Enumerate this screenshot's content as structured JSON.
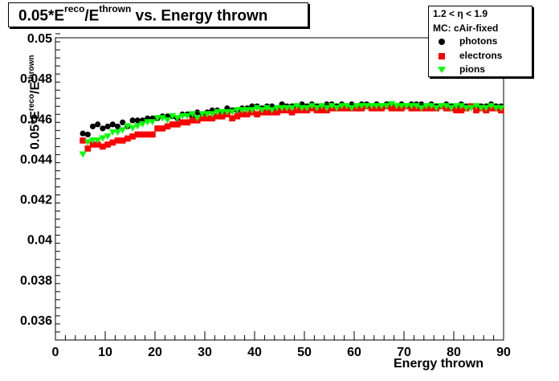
{
  "title": {
    "prefix": "0.05*E",
    "sup1": "reco",
    "mid": "/E",
    "sup2": "thrown",
    "suffix": " vs. Energy thrown"
  },
  "legend": {
    "header": "1.2 < η < 1.9",
    "subheader": "MC: cAir-fixed",
    "entries": [
      {
        "label": "photons",
        "color": "#000000",
        "marker": "circle"
      },
      {
        "label": "electrons",
        "color": "#ff0000",
        "marker": "square"
      },
      {
        "label": "pions",
        "color": "#00ff00",
        "marker": "triangle-down"
      }
    ]
  },
  "axes": {
    "x_title": "Energy thrown",
    "y_title_prefix": "0.05*E",
    "y_title_sup1": "reco",
    "y_title_mid": "/E",
    "y_title_sup2": "thrown"
  },
  "chart_data": {
    "type": "scatter",
    "xlim": [
      0,
      90
    ],
    "ylim": [
      0.035,
      0.05
    ],
    "x_ticks": [
      "0",
      "10",
      "20",
      "30",
      "40",
      "50",
      "60",
      "70",
      "80",
      "90"
    ],
    "y_ticks": [
      "0.036",
      "0.038",
      "0.04",
      "0.042",
      "0.044",
      "0.046",
      "0.048",
      "0.05"
    ],
    "grid": false,
    "legend_position": "top-right",
    "series": [
      {
        "name": "photons",
        "color": "#000000",
        "marker": "circle",
        "x": [
          5.5,
          6.5,
          7.5,
          8.5,
          9.5,
          10.5,
          11.5,
          12.5,
          13.5,
          14.5,
          15.5,
          16.5,
          17.5,
          18.5,
          19.5,
          20.5,
          21.5,
          22.5,
          23.5,
          24.5,
          25.5,
          26.5,
          27.5,
          28.5,
          29.5,
          30.5,
          31.5,
          32.5,
          33.5,
          34.5,
          35.5,
          36.5,
          37.5,
          38.5,
          39.5,
          40.5,
          41.5,
          42.5,
          43.5,
          44.5,
          45.5,
          46.5,
          47.5,
          48.5,
          49.5,
          50.5,
          51.5,
          52.5,
          53.5,
          54.5,
          55.5,
          56.5,
          57.5,
          58.5,
          59.5,
          60.5,
          61.5,
          62.5,
          63.5,
          64.5,
          65.5,
          66.5,
          67.5,
          68.5,
          69.5,
          70.5,
          71.5,
          72.5,
          73.5,
          74.5,
          75.5,
          76.5,
          77.5,
          78.5,
          79.5,
          80.5,
          81.5,
          82.5,
          83.5,
          84.5,
          85.5,
          86.5,
          87.5,
          88.5,
          89.5
        ],
        "y": [
          0.04525,
          0.0452,
          0.0456,
          0.0457,
          0.0455,
          0.0456,
          0.0457,
          0.0456,
          0.0458,
          0.0456,
          0.0459,
          0.0459,
          0.0459,
          0.046,
          0.046,
          0.046,
          0.0461,
          0.0461,
          0.0461,
          0.046,
          0.0462,
          0.0462,
          0.0461,
          0.0463,
          0.0462,
          0.0463,
          0.0464,
          0.0464,
          0.0463,
          0.0465,
          0.0464,
          0.0464,
          0.0465,
          0.0465,
          0.0466,
          0.0466,
          0.0465,
          0.0466,
          0.0466,
          0.0465,
          0.0467,
          0.0466,
          0.0466,
          0.0466,
          0.0467,
          0.0466,
          0.0467,
          0.0466,
          0.0466,
          0.0467,
          0.0467,
          0.0466,
          0.0467,
          0.0466,
          0.0467,
          0.0466,
          0.0467,
          0.0467,
          0.0466,
          0.0467,
          0.0466,
          0.0467,
          0.0467,
          0.0466,
          0.0467,
          0.0466,
          0.0467,
          0.0467,
          0.0467,
          0.0466,
          0.0467,
          0.0466,
          0.0466,
          0.0467,
          0.0466,
          0.0466,
          0.0467,
          0.0466,
          0.0466,
          0.0465,
          0.0466,
          0.0466,
          0.0467,
          0.0466,
          0.0466
        ]
      },
      {
        "name": "electrons",
        "color": "#ff0000",
        "marker": "square",
        "x": [
          5.5,
          6.5,
          7.5,
          8.5,
          9.5,
          10.5,
          11.5,
          12.5,
          13.5,
          14.5,
          15.5,
          16.5,
          17.5,
          18.5,
          19.5,
          20.5,
          21.5,
          22.5,
          23.5,
          24.5,
          25.5,
          26.5,
          27.5,
          28.5,
          29.5,
          30.5,
          31.5,
          32.5,
          33.5,
          34.5,
          35.5,
          36.5,
          37.5,
          38.5,
          39.5,
          40.5,
          41.5,
          42.5,
          43.5,
          44.5,
          45.5,
          46.5,
          47.5,
          48.5,
          49.5,
          50.5,
          51.5,
          52.5,
          53.5,
          54.5,
          55.5,
          56.5,
          57.5,
          58.5,
          59.5,
          60.5,
          61.5,
          62.5,
          63.5,
          64.5,
          65.5,
          66.5,
          67.5,
          68.5,
          69.5,
          70.5,
          71.5,
          72.5,
          73.5,
          74.5,
          75.5,
          76.5,
          77.5,
          78.5,
          79.5,
          80.5,
          81.5,
          82.5,
          83.5,
          84.5,
          85.5,
          86.5,
          87.5,
          88.5,
          89.5
        ],
        "y": [
          0.0449,
          0.0445,
          0.0447,
          0.0447,
          0.0446,
          0.0447,
          0.0448,
          0.0449,
          0.0449,
          0.045,
          0.0451,
          0.0452,
          0.0452,
          0.0452,
          0.0452,
          0.0455,
          0.0455,
          0.0456,
          0.0457,
          0.0457,
          0.0458,
          0.0458,
          0.0459,
          0.0459,
          0.046,
          0.046,
          0.046,
          0.0461,
          0.0461,
          0.0462,
          0.046,
          0.0461,
          0.0462,
          0.0462,
          0.0463,
          0.0462,
          0.0463,
          0.0463,
          0.0463,
          0.0463,
          0.0464,
          0.0464,
          0.0463,
          0.0464,
          0.0464,
          0.0464,
          0.0465,
          0.0464,
          0.0464,
          0.0464,
          0.0465,
          0.0465,
          0.0465,
          0.0465,
          0.0465,
          0.0465,
          0.0465,
          0.0466,
          0.0465,
          0.0465,
          0.0465,
          0.0466,
          0.0465,
          0.0465,
          0.0465,
          0.0466,
          0.0465,
          0.0465,
          0.0465,
          0.0465,
          0.0465,
          0.0465,
          0.0466,
          0.0465,
          0.0465,
          0.0464,
          0.0464,
          0.0465,
          0.0466,
          0.0464,
          0.0465,
          0.0464,
          0.0465,
          0.0465,
          0.0464
        ]
      },
      {
        "name": "pions",
        "color": "#00ff00",
        "marker": "triangle-down",
        "x": [
          5.5,
          6.5,
          7.5,
          8.5,
          9.5,
          10.5,
          11.5,
          12.5,
          13.5,
          14.5,
          15.5,
          16.5,
          17.5,
          18.5,
          19.5,
          20.5,
          21.5,
          22.5,
          23.5,
          24.5,
          25.5,
          26.5,
          27.5,
          28.5,
          29.5,
          30.5,
          31.5,
          32.5,
          33.5,
          34.5,
          35.5,
          36.5,
          37.5,
          38.5,
          39.5,
          40.5,
          41.5,
          42.5,
          43.5,
          44.5,
          45.5,
          46.5,
          47.5,
          48.5,
          49.5,
          50.5,
          51.5,
          52.5,
          53.5,
          54.5,
          55.5,
          56.5,
          57.5,
          58.5,
          59.5,
          60.5,
          61.5,
          62.5,
          63.5,
          64.5,
          65.5,
          66.5,
          67.5,
          68.5,
          69.5,
          70.5,
          71.5,
          72.5,
          73.5,
          74.5,
          75.5,
          76.5,
          77.5,
          78.5,
          79.5,
          80.5,
          81.5,
          82.5,
          83.5,
          84.5,
          85.5,
          86.5,
          87.5,
          88.5,
          89.5
        ],
        "y": [
          0.0442,
          0.0448,
          0.0449,
          0.0449,
          0.045,
          0.0451,
          0.0453,
          0.0453,
          0.0454,
          0.0456,
          0.0455,
          0.0456,
          0.0457,
          0.0458,
          0.0458,
          0.046,
          0.046,
          0.0459,
          0.0461,
          0.046,
          0.0461,
          0.0461,
          0.0462,
          0.046,
          0.0462,
          0.0462,
          0.0462,
          0.0463,
          0.0463,
          0.0463,
          0.0463,
          0.0464,
          0.0464,
          0.0464,
          0.0464,
          0.0465,
          0.0464,
          0.0465,
          0.0464,
          0.0465,
          0.0465,
          0.0465,
          0.0465,
          0.0466,
          0.0465,
          0.0465,
          0.0466,
          0.0465,
          0.0466,
          0.0465,
          0.0466,
          0.0465,
          0.0466,
          0.0466,
          0.0465,
          0.0466,
          0.0466,
          0.0466,
          0.0466,
          0.0466,
          0.0466,
          0.0466,
          0.0467,
          0.0466,
          0.0466,
          0.0466,
          0.0466,
          0.0466,
          0.0465,
          0.0466,
          0.0466,
          0.0465,
          0.0466,
          0.0466,
          0.0465,
          0.0466,
          0.0466,
          0.0465,
          0.0465,
          0.0466,
          0.0465,
          0.0465,
          0.0466,
          0.0465,
          0.0465
        ]
      }
    ]
  }
}
